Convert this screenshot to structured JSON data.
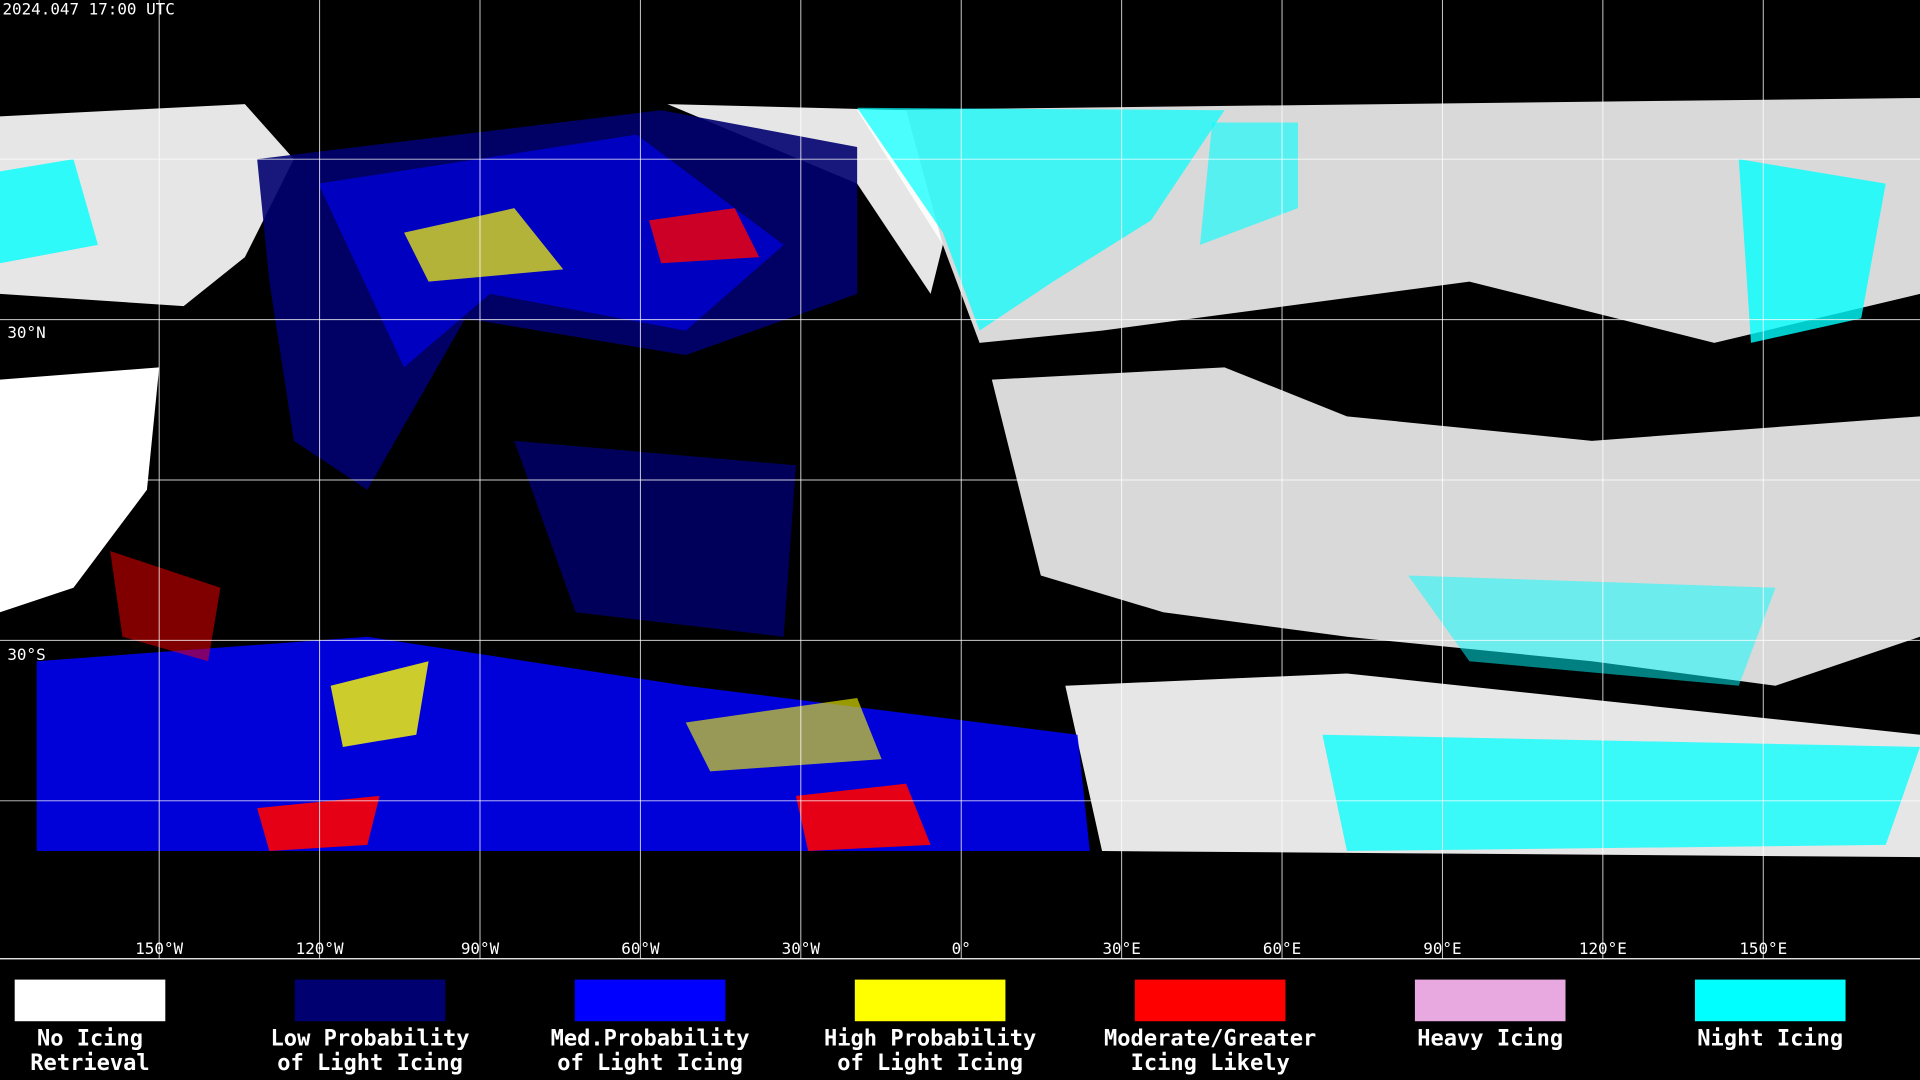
{
  "header": {
    "timestamp": "2024.047 17:00 UTC"
  },
  "latitude_labels": [
    "30°N",
    "30°S"
  ],
  "longitude_labels": [
    "150°W",
    "120°W",
    "90°W",
    "60°W",
    "30°W",
    "0°",
    "30°E",
    "60°E",
    "90°E",
    "120°E",
    "150°E"
  ],
  "legend": [
    {
      "lines": [
        "No Icing",
        "Retrieval"
      ],
      "color": "#ffffff"
    },
    {
      "lines": [
        "Low Probability",
        "of Light Icing"
      ],
      "color": "#000070"
    },
    {
      "lines": [
        "Med.Probability",
        "of Light Icing"
      ],
      "color": "#0000ff"
    },
    {
      "lines": [
        "High Probability",
        "of Light Icing"
      ],
      "color": "#ffff00"
    },
    {
      "lines": [
        "Moderate/Greater",
        "Icing Likely"
      ],
      "color": "#ff0000"
    },
    {
      "lines": [
        "Heavy Icing"
      ],
      "color": "#e8a8e0"
    },
    {
      "lines": [
        "Night Icing"
      ],
      "color": "#00ffff"
    }
  ]
}
